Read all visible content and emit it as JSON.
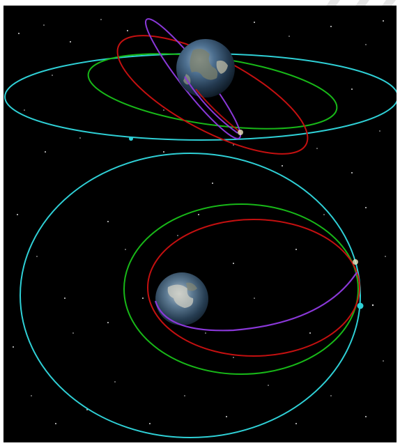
{
  "scene": {
    "background": "#000000",
    "frame_color": "#ffffff",
    "top_view": {
      "planet": "earth",
      "orbit_colors": {
        "cyan": "#2fd0d6",
        "green": "#18b818",
        "red": "#c41010",
        "purple": "#8a38d8"
      }
    },
    "bottom_view": {
      "planet": "earth",
      "orbit_colors": {
        "cyan": "#2fd0d6",
        "green": "#18b818",
        "red": "#c41010",
        "purple": "#8a38d8"
      }
    }
  }
}
